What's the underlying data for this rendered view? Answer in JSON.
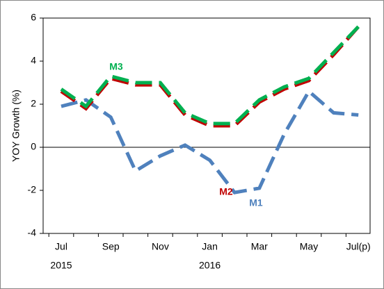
{
  "chart_data": {
    "type": "line",
    "y_label": "YOY Growth (%)",
    "categories": [
      "Jul",
      null,
      "Sep",
      null,
      "Nov",
      null,
      "Jan",
      null,
      "Mar",
      null,
      "May",
      null,
      "Jul(p)"
    ],
    "year_labels": [
      "2015",
      "2016"
    ],
    "series": [
      {
        "name": "M1",
        "color": "#4f81bd",
        "values": [
          1.9,
          2.2,
          1.4,
          -1.1,
          -0.4,
          0.1,
          -0.6,
          -2.1,
          -1.9,
          0.6,
          2.6,
          1.6,
          1.5
        ]
      },
      {
        "name": "M2",
        "color": "#c00000",
        "values": [
          2.6,
          1.8,
          3.2,
          2.9,
          2.9,
          1.5,
          1.0,
          1.0,
          2.1,
          2.7,
          3.1,
          4.3,
          5.6
        ]
      },
      {
        "name": "M3",
        "color": "#00b050",
        "values": [
          2.7,
          1.9,
          3.3,
          3.0,
          3.0,
          1.6,
          1.1,
          1.1,
          2.2,
          2.8,
          3.2,
          4.4,
          5.6
        ]
      }
    ],
    "ylim": [
      -4,
      6
    ],
    "yticks": [
      -4,
      -2,
      0,
      2,
      4,
      6
    ],
    "grid": false
  }
}
